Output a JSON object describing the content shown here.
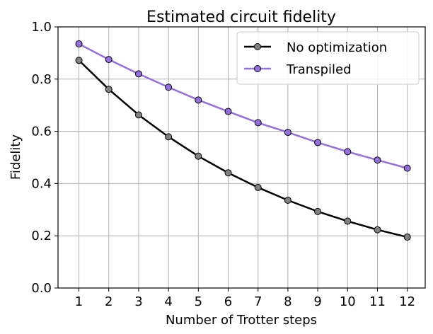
{
  "chart_data": {
    "type": "line",
    "title": "Estimated circuit fidelity",
    "xlabel": "Number of Trotter steps",
    "ylabel": "Fidelity",
    "x": [
      1,
      2,
      3,
      4,
      5,
      6,
      7,
      8,
      9,
      10,
      11,
      12
    ],
    "xticks": [
      "1",
      "2",
      "3",
      "4",
      "5",
      "6",
      "7",
      "8",
      "9",
      "10",
      "11",
      "12"
    ],
    "yticks": [
      "0.0",
      "0.2",
      "0.4",
      "0.6",
      "0.8",
      "1.0"
    ],
    "ylim": [
      0,
      1
    ],
    "xlim": [
      0.3,
      12.6
    ],
    "grid": true,
    "legend_position": "top-right",
    "series": [
      {
        "name": "No optimization",
        "line_color": "#000000",
        "marker_color": "#808080",
        "values": [
          0.872,
          0.761,
          0.663,
          0.579,
          0.505,
          0.441,
          0.385,
          0.336,
          0.293,
          0.256,
          0.223,
          0.195
        ]
      },
      {
        "name": "Transpiled",
        "line_color": "#9370db",
        "marker_color": "#9370db",
        "values": [
          0.935,
          0.875,
          0.82,
          0.769,
          0.72,
          0.676,
          0.633,
          0.596,
          0.557,
          0.522,
          0.49,
          0.459
        ]
      }
    ]
  }
}
